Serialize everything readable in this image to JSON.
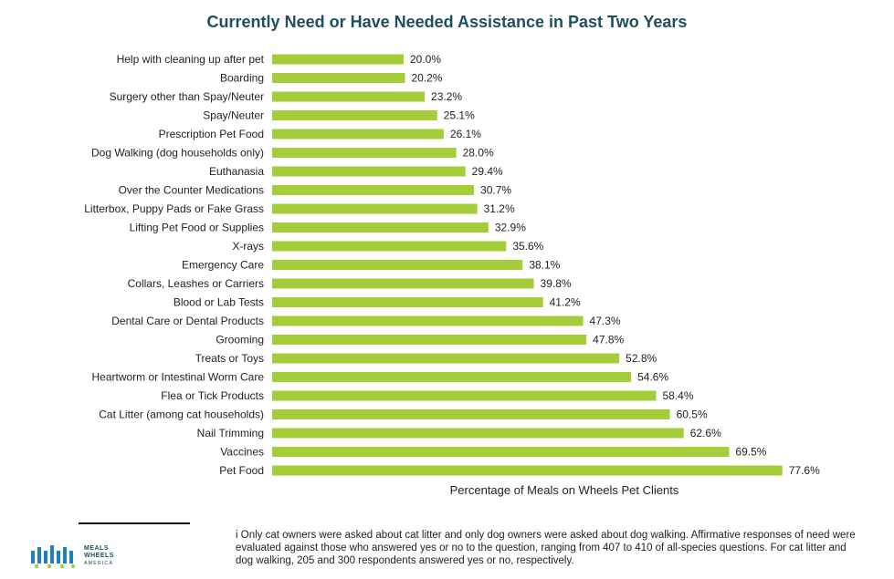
{
  "chart_data": {
    "type": "bar",
    "orientation": "horizontal",
    "title": "Currently Need or Have Needed Assistance in Past Two Years",
    "xlabel": "Percentage of Meals on Wheels Pet Clients",
    "ylabel": "",
    "xlim": [
      0,
      100
    ],
    "grid": false,
    "categories": [
      "Help with cleaning up after pet",
      "Boarding",
      "Surgery other than Spay/Neuter",
      "Spay/Neuter",
      "Prescription Pet Food",
      "Dog Walking (dog households only)",
      "Euthanasia",
      "Over the Counter Medications",
      "Litterbox, Puppy Pads or Fake Grass",
      "Lifting Pet Food or Supplies",
      "X-rays",
      "Emergency Care",
      "Collars, Leashes or Carriers",
      "Blood or Lab Tests",
      "Dental Care or Dental Products",
      "Grooming",
      "Treats or Toys",
      "Heartworm or Intestinal Worm Care",
      "Flea or Tick Products",
      "Cat Litter (among cat households)",
      "Nail Trimming",
      "Vaccines",
      "Pet Food"
    ],
    "values": [
      20.0,
      20.2,
      23.2,
      25.1,
      26.1,
      28.0,
      29.4,
      30.7,
      31.2,
      32.9,
      35.6,
      38.1,
      39.8,
      41.2,
      47.3,
      47.8,
      52.8,
      54.6,
      58.4,
      60.5,
      62.6,
      69.5,
      77.6
    ],
    "value_labels": [
      "20.0%",
      "20.2%",
      "23.2%",
      "25.1%",
      "26.1%",
      "28.0%",
      "29.4%",
      "30.7%",
      "31.2%",
      "32.9%",
      "35.6%",
      "38.1%",
      "39.8%",
      "41.2%",
      "47.3%",
      "47.8%",
      "52.8%",
      "54.6%",
      "58.4%",
      "60.5%",
      "62.6%",
      "69.5%",
      "77.6%"
    ],
    "bar_color": "#a3cd39"
  },
  "footnote": "i    Only cat owners were asked about cat litter and only dog owners were asked about dog walking. Affirmative responses of need were evaluated against those who answered yes or no to the question, ranging from 407 to 410 of all-species questions. For cat litter and dog walking, 205 and 300 respondents answered yes or no, respectively.",
  "logo": {
    "line1": "MEALS",
    "line2": "WHEELS",
    "line3": "AMERICA"
  },
  "colors": {
    "title": "#1f4e5f",
    "bar": "#a3cd39",
    "logo_blue": "#1f7fc0",
    "logo_green": "#a3cd39"
  }
}
